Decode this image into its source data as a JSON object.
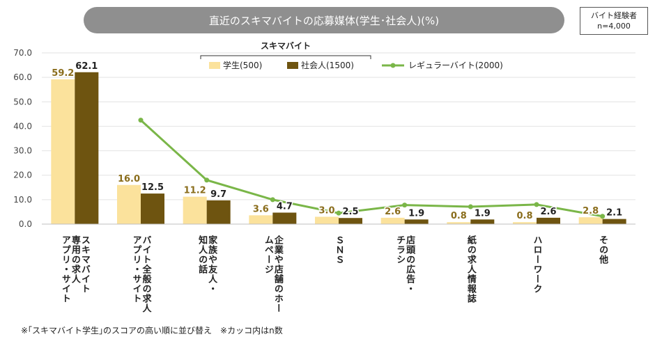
{
  "header": {
    "title": "直近のスキマバイトの応募媒体(学生･社会人)(%)",
    "sample_label": "バイト経験者",
    "sample_n": "n=4,000"
  },
  "footnote": "※｢スキマバイト学生｣のスコアの高い順に並び替え　※カッコ内はn数",
  "chart_data": {
    "type": "bar",
    "title": "直近のスキマバイトの応募媒体(学生･社会人)(%)",
    "xlabel": "",
    "ylabel": "",
    "ylim": [
      0,
      70
    ],
    "yticks": [
      "0.0",
      "10.0",
      "20.0",
      "30.0",
      "40.0",
      "50.0",
      "60.0",
      "70.0"
    ],
    "legend_group_label": "スキマバイト",
    "categories": [
      "スキマバイト専用の求人アプリ・サイト",
      "バイト全般の求人アプリ・サイト",
      "家族や友人・知人の話",
      "企業や店舗のホームページ",
      "ＳＮＳ",
      "店頭の広告・チラシ",
      "紙の求人情報誌",
      "ハローワーク",
      "その他"
    ],
    "category_columns": [
      [
        "スキマバイト",
        "専用の求人",
        "アプリ・サイト"
      ],
      [
        "バイト全般の求人",
        "アプリ・サイト"
      ],
      [
        "家族や友人・",
        "知人の話"
      ],
      [
        "企業や店舗のホー",
        "ムページ"
      ],
      [
        "ＳＮＳ"
      ],
      [
        "店頭の広告・",
        "チラシ"
      ],
      [
        "紙の求人情報誌"
      ],
      [
        "ハローワーク"
      ],
      [
        "その他"
      ]
    ],
    "series": [
      {
        "name": "学生(500)",
        "type": "bar",
        "color": "#fbe29c",
        "label_color": "#8a6d1c",
        "values": [
          59.2,
          16.0,
          11.2,
          3.6,
          3.0,
          2.6,
          0.8,
          0.8,
          2.8
        ],
        "labels": [
          "59.2",
          "16.0",
          "11.2",
          "3.6",
          "3.0",
          "2.6",
          "0.8",
          "0.8",
          "2.8"
        ]
      },
      {
        "name": "社会人(1500)",
        "type": "bar",
        "color": "#6e5410",
        "label_color": "#222222",
        "values": [
          62.1,
          12.5,
          9.7,
          4.7,
          2.5,
          1.9,
          1.9,
          2.6,
          2.1
        ],
        "labels": [
          "62.1",
          "12.5",
          "9.7",
          "4.7",
          "2.5",
          "1.9",
          "1.9",
          "2.6",
          "2.1"
        ]
      },
      {
        "name": "レギュラーバイト(2000)",
        "type": "line",
        "color": "#7ab648",
        "values": [
          null,
          42.5,
          18.0,
          10.0,
          4.5,
          7.8,
          7.1,
          8.0,
          3.2
        ]
      }
    ]
  }
}
